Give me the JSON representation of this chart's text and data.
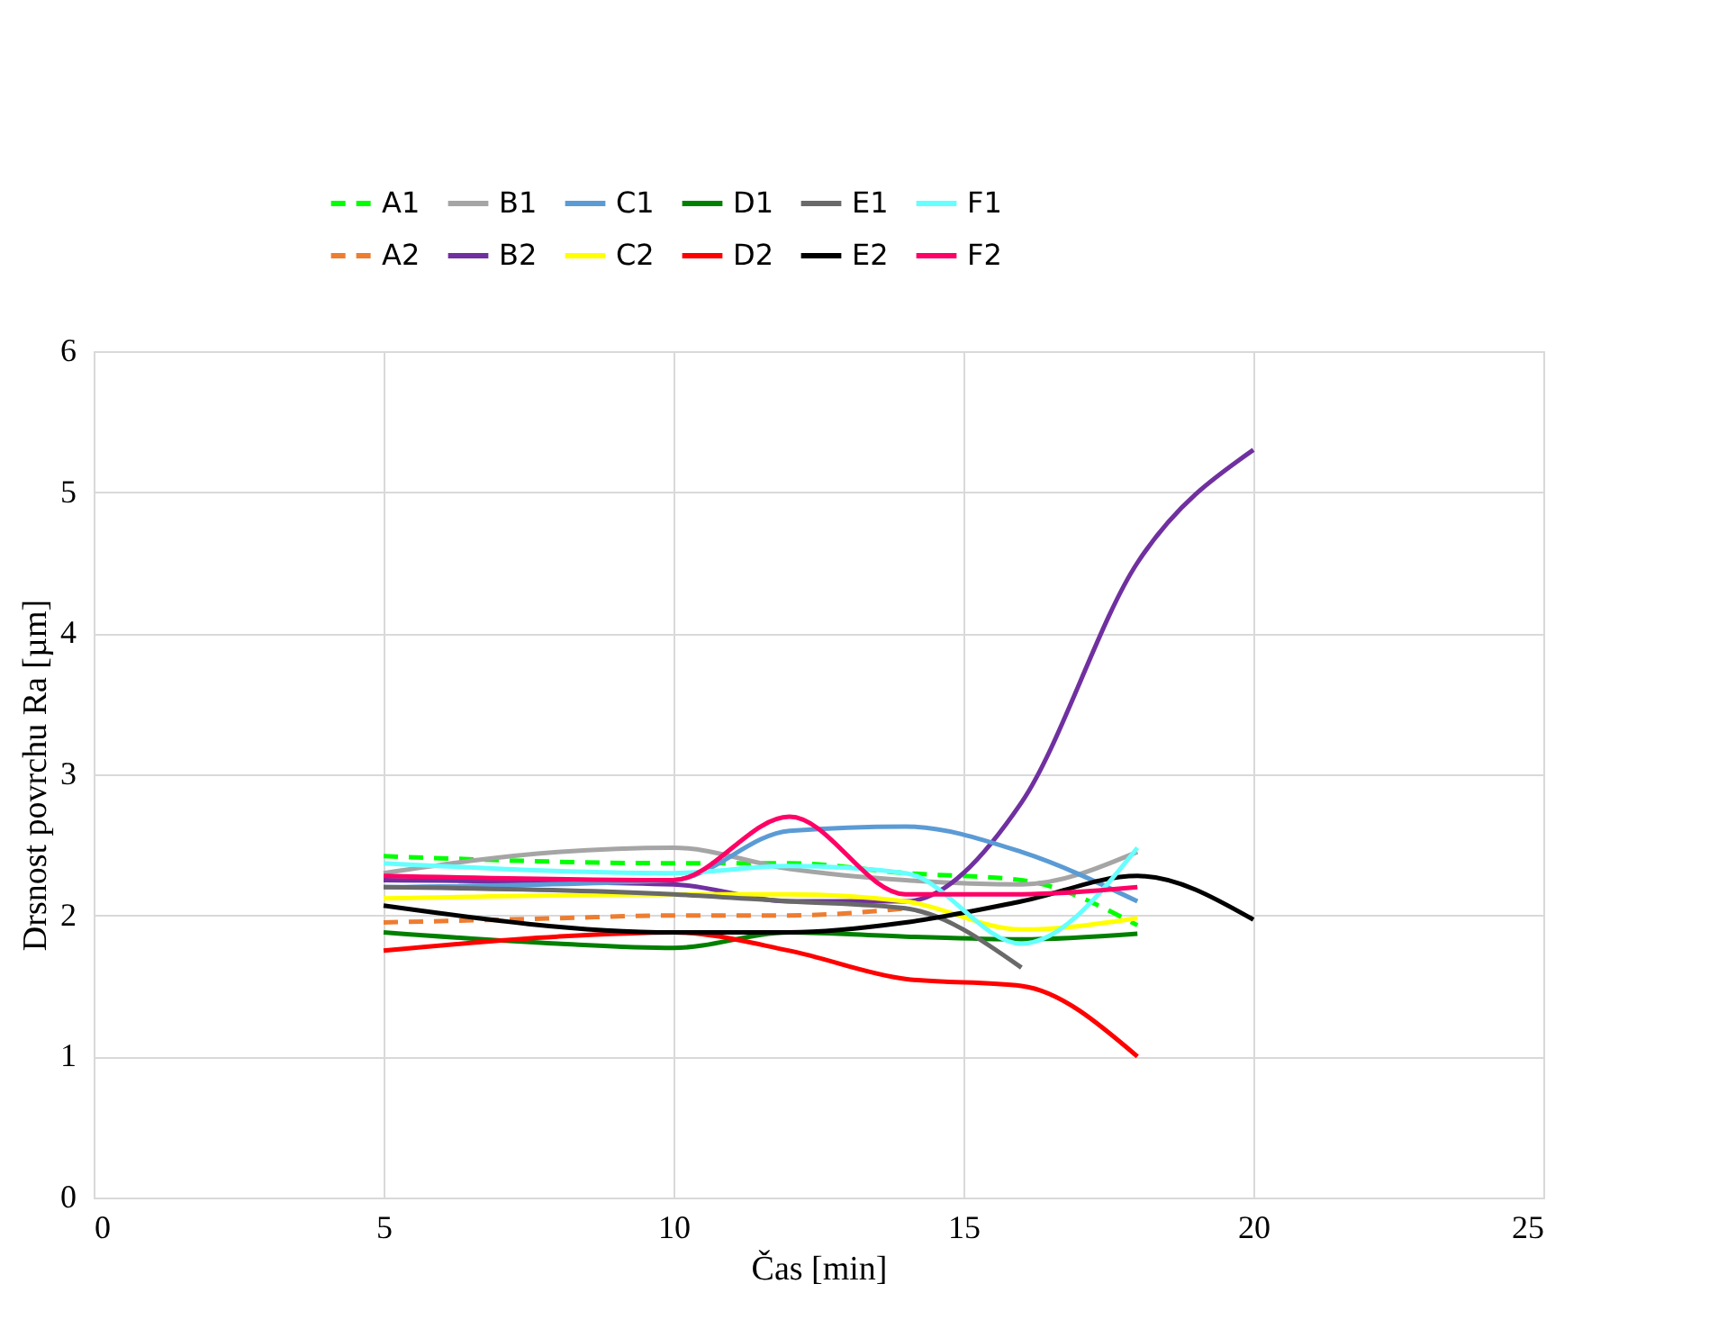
{
  "chart_data": {
    "type": "line",
    "xlabel": "Čas [min]",
    "ylabel": "Drsnost povrchu Ra [µm]",
    "xlim": [
      0,
      25
    ],
    "xticks": [
      0,
      5,
      10,
      15,
      20,
      25
    ],
    "ylim": [
      0,
      6
    ],
    "yticks": [
      0,
      1,
      2,
      3,
      4,
      5,
      6
    ],
    "grid": true,
    "legend": "top",
    "marker": "none",
    "series": [
      {
        "name": "A1",
        "color": "#00ff00",
        "line_style": "dashed",
        "x": [
          5,
          10,
          12,
          14,
          16,
          18
        ],
        "values": [
          2.42,
          2.37,
          2.37,
          2.3,
          2.25,
          1.93
        ]
      },
      {
        "name": "A2",
        "color": "#ed7d31",
        "line_style": "dashed",
        "x": [
          5,
          8,
          10,
          12,
          14
        ],
        "values": [
          1.95,
          1.98,
          2.0,
          2.0,
          2.05
        ]
      },
      {
        "name": "B1",
        "color": "#a5a5a5",
        "line_style": "solid",
        "x": [
          5,
          8,
          10,
          12,
          14,
          16,
          18
        ],
        "values": [
          2.3,
          2.45,
          2.48,
          2.33,
          2.25,
          2.22,
          2.45
        ]
      },
      {
        "name": "B2",
        "color": "#7030a0",
        "line_style": "solid",
        "x": [
          5,
          10,
          12,
          14,
          16,
          18,
          20
        ],
        "values": [
          2.25,
          2.22,
          2.1,
          2.1,
          2.8,
          4.5,
          5.3
        ]
      },
      {
        "name": "C1",
        "color": "#5b9bd5",
        "line_style": "solid",
        "x": [
          5,
          10,
          12,
          14,
          16,
          18
        ],
        "values": [
          2.2,
          2.25,
          2.6,
          2.63,
          2.45,
          2.1
        ]
      },
      {
        "name": "C2",
        "color": "#ffff00",
        "line_style": "solid",
        "x": [
          5,
          10,
          12,
          14,
          16,
          18
        ],
        "values": [
          2.12,
          2.15,
          2.15,
          2.1,
          1.9,
          1.98
        ]
      },
      {
        "name": "D1",
        "color": "#008000",
        "line_style": "solid",
        "x": [
          5,
          8,
          10,
          12,
          14,
          16,
          18
        ],
        "values": [
          1.88,
          1.8,
          1.77,
          1.88,
          1.85,
          1.83,
          1.87
        ]
      },
      {
        "name": "D2",
        "color": "#ff0000",
        "line_style": "solid",
        "x": [
          5,
          8,
          10,
          12,
          14,
          16,
          18
        ],
        "values": [
          1.75,
          1.85,
          1.88,
          1.75,
          1.55,
          1.5,
          1.0
        ]
      },
      {
        "name": "E1",
        "color": "#696969",
        "line_style": "solid",
        "x": [
          5,
          10,
          12,
          14,
          16
        ],
        "values": [
          2.2,
          2.15,
          2.1,
          2.05,
          1.63
        ]
      },
      {
        "name": "E2",
        "color": "#000000",
        "line_style": "solid",
        "x": [
          5,
          10,
          12,
          14,
          16,
          18,
          20
        ],
        "values": [
          2.07,
          1.88,
          1.88,
          1.95,
          2.1,
          2.28,
          1.97
        ]
      },
      {
        "name": "F1",
        "color": "#66ffff",
        "line_style": "solid",
        "x": [
          5,
          10,
          12,
          14,
          16,
          18
        ],
        "values": [
          2.37,
          2.3,
          2.35,
          2.3,
          1.8,
          2.48
        ]
      },
      {
        "name": "F2",
        "color": "#ff0066",
        "line_style": "solid",
        "x": [
          5,
          10,
          12,
          14,
          16,
          18
        ],
        "values": [
          2.28,
          2.25,
          2.7,
          2.15,
          2.15,
          2.2
        ]
      }
    ]
  }
}
